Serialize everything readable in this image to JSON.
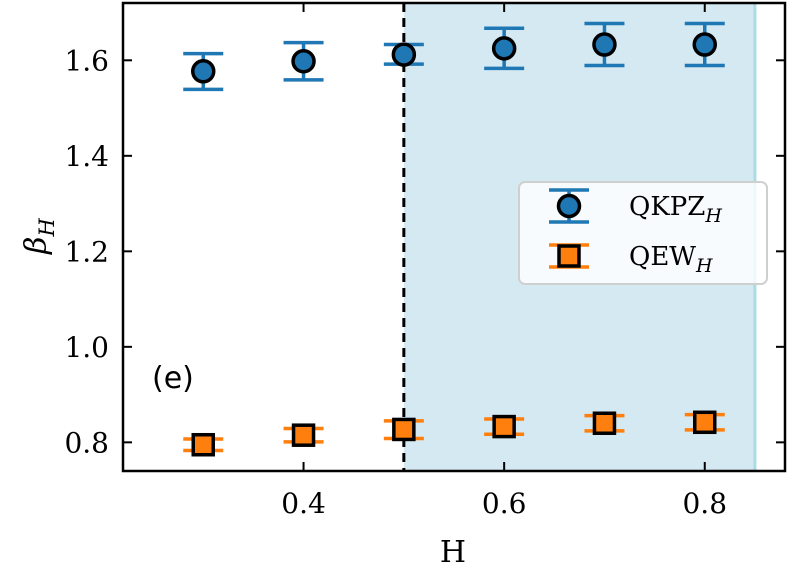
{
  "chart_data": {
    "type": "scatter",
    "panel_label": "(e)",
    "xlabel": "H",
    "ylabel": "β",
    "ylabel_sub": "H",
    "xlim": [
      0.22,
      0.88
    ],
    "ylim": [
      0.74,
      1.72
    ],
    "xticks": [
      0.4,
      0.6,
      0.8
    ],
    "xtick_labels": [
      "0.4",
      "0.6",
      "0.8"
    ],
    "yticks": [
      0.8,
      1.0,
      1.2,
      1.4,
      1.6
    ],
    "ytick_labels": [
      "0.8",
      "1.0",
      "1.2",
      "1.4",
      "1.6"
    ],
    "grid": false,
    "legend_position": "right",
    "vline_x": 0.5,
    "shaded_region": [
      0.5,
      0.85
    ],
    "colors": {
      "shade": "#d5e9f2",
      "shade_edge": "#a9dde3",
      "qkpz": "#1f77b4",
      "qew": "#ff7f0e",
      "marker_edge": "#000000"
    },
    "series": [
      {
        "name": "QKPZ",
        "name_sub": "H",
        "marker": "circle",
        "points": [
          {
            "x": 0.3,
            "y": 1.577,
            "err_lo": 0.038,
            "err_hi": 0.037
          },
          {
            "x": 0.4,
            "y": 1.598,
            "err_lo": 0.039,
            "err_hi": 0.039
          },
          {
            "x": 0.5,
            "y": 1.612,
            "err_lo": 0.02,
            "err_hi": 0.021
          },
          {
            "x": 0.6,
            "y": 1.625,
            "err_lo": 0.042,
            "err_hi": 0.042
          },
          {
            "x": 0.7,
            "y": 1.633,
            "err_lo": 0.044,
            "err_hi": 0.044
          },
          {
            "x": 0.8,
            "y": 1.633,
            "err_lo": 0.044,
            "err_hi": 0.044
          }
        ]
      },
      {
        "name": "QEW",
        "name_sub": "H",
        "marker": "square",
        "points": [
          {
            "x": 0.3,
            "y": 0.795,
            "err_lo": 0.012,
            "err_hi": 0.012
          },
          {
            "x": 0.4,
            "y": 0.815,
            "err_lo": 0.014,
            "err_hi": 0.014
          },
          {
            "x": 0.5,
            "y": 0.827,
            "err_lo": 0.019,
            "err_hi": 0.018
          },
          {
            "x": 0.6,
            "y": 0.833,
            "err_lo": 0.016,
            "err_hi": 0.016
          },
          {
            "x": 0.7,
            "y": 0.84,
            "err_lo": 0.016,
            "err_hi": 0.016
          },
          {
            "x": 0.8,
            "y": 0.842,
            "err_lo": 0.016,
            "err_hi": 0.016
          }
        ]
      }
    ]
  }
}
